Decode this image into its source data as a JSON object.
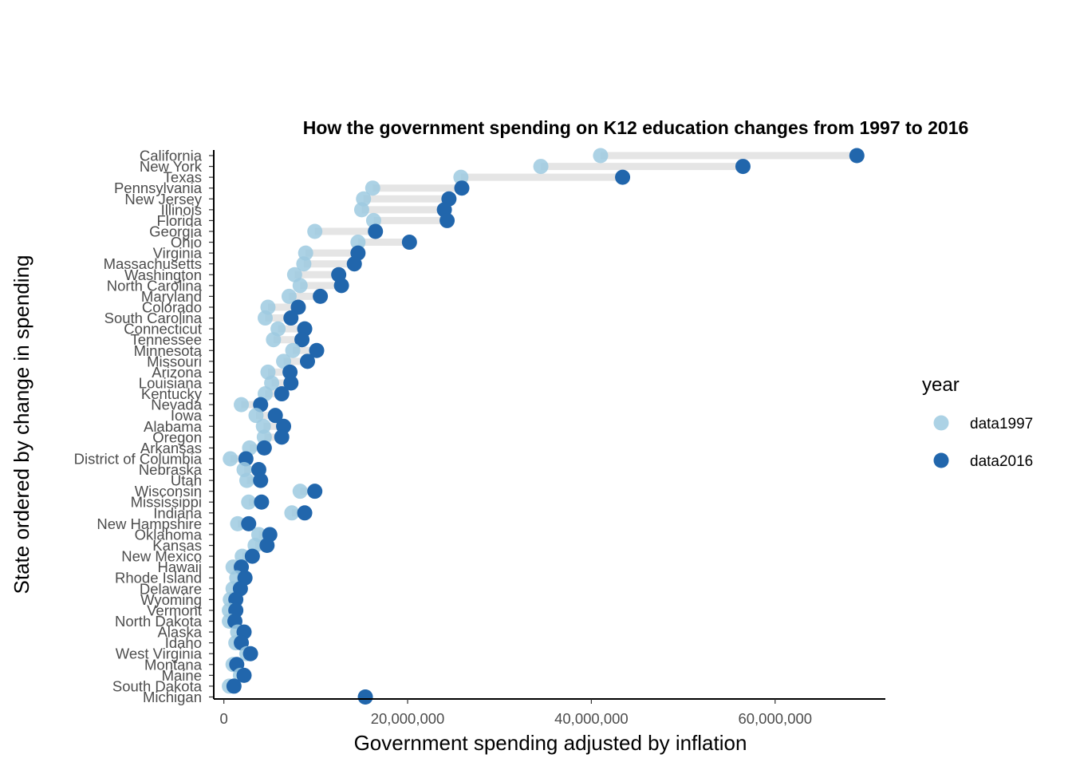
{
  "colors": {
    "data1997": "#9ecae1",
    "data2016": "#2166ac",
    "segment": "#e5e5e5",
    "axis": "#000000"
  },
  "chart_data": {
    "type": "dumbbell",
    "title": "How the government spending on K12 education changes from 1997 to 2016",
    "xlabel": "Government spending adjusted by inflation",
    "ylabel": "State ordered by change in spending",
    "xlim": [
      -1100000,
      72000000
    ],
    "x_ticks": [
      0,
      20000000,
      40000000,
      60000000
    ],
    "x_tick_labels": [
      "0",
      "20,000,000",
      "40,000,000",
      "60,000,000"
    ],
    "legend_title": "year",
    "legend_position": "right",
    "series": [
      {
        "name": "data1997",
        "key": "v1997"
      },
      {
        "name": "data2016",
        "key": "v2016"
      }
    ],
    "states": [
      {
        "name": "California",
        "v1997": 41000000,
        "v2016": 68900000
      },
      {
        "name": "New York",
        "v1997": 34500000,
        "v2016": 56500000
      },
      {
        "name": "Texas",
        "v1997": 25800000,
        "v2016": 43400000
      },
      {
        "name": "Pennsylvania",
        "v1997": 16200000,
        "v2016": 25900000
      },
      {
        "name": "New Jersey",
        "v1997": 15200000,
        "v2016": 24500000
      },
      {
        "name": "Illinois",
        "v1997": 15000000,
        "v2016": 24000000
      },
      {
        "name": "Florida",
        "v1997": 16300000,
        "v2016": 24300000
      },
      {
        "name": "Georgia",
        "v1997": 9900000,
        "v2016": 16500000
      },
      {
        "name": "Ohio",
        "v1997": 14600000,
        "v2016": 20200000
      },
      {
        "name": "Virginia",
        "v1997": 8900000,
        "v2016": 14600000
      },
      {
        "name": "Massachusetts",
        "v1997": 8700000,
        "v2016": 14200000
      },
      {
        "name": "Washington",
        "v1997": 7700000,
        "v2016": 12500000
      },
      {
        "name": "North Carolina",
        "v1997": 8300000,
        "v2016": 12800000
      },
      {
        "name": "Maryland",
        "v1997": 7100000,
        "v2016": 10500000
      },
      {
        "name": "Colorado",
        "v1997": 4800000,
        "v2016": 8100000
      },
      {
        "name": "South Carolina",
        "v1997": 4500000,
        "v2016": 7300000
      },
      {
        "name": "Connecticut",
        "v1997": 5900000,
        "v2016": 8800000
      },
      {
        "name": "Tennessee",
        "v1997": 5400000,
        "v2016": 8500000
      },
      {
        "name": "Minnesota",
        "v1997": 7500000,
        "v2016": 10100000
      },
      {
        "name": "Missouri",
        "v1997": 6500000,
        "v2016": 9100000
      },
      {
        "name": "Arizona",
        "v1997": 4800000,
        "v2016": 7200000
      },
      {
        "name": "Louisiana",
        "v1997": 5200000,
        "v2016": 7300000
      },
      {
        "name": "Kentucky",
        "v1997": 4500000,
        "v2016": 6300000
      },
      {
        "name": "Nevada",
        "v1997": 1900000,
        "v2016": 4000000
      },
      {
        "name": "Iowa",
        "v1997": 3500000,
        "v2016": 5600000
      },
      {
        "name": "Alabama",
        "v1997": 4300000,
        "v2016": 6500000
      },
      {
        "name": "Oregon",
        "v1997": 4400000,
        "v2016": 6300000
      },
      {
        "name": "Arkansas",
        "v1997": 2800000,
        "v2016": 4400000
      },
      {
        "name": "District of Columbia",
        "v1997": 700000,
        "v2016": 2400000
      },
      {
        "name": "Nebraska",
        "v1997": 2200000,
        "v2016": 3800000
      },
      {
        "name": "Utah",
        "v1997": 2500000,
        "v2016": 4000000
      },
      {
        "name": "Wisconsin",
        "v1997": 8300000,
        "v2016": 9900000
      },
      {
        "name": "Mississippi",
        "v1997": 2700000,
        "v2016": 4100000
      },
      {
        "name": "Indiana",
        "v1997": 7400000,
        "v2016": 8800000
      },
      {
        "name": "New Hampshire",
        "v1997": 1500000,
        "v2016": 2700000
      },
      {
        "name": "Oklahoma",
        "v1997": 3800000,
        "v2016": 5000000
      },
      {
        "name": "Kansas",
        "v1997": 3400000,
        "v2016": 4700000
      },
      {
        "name": "New Mexico",
        "v1997": 2000000,
        "v2016": 3100000
      },
      {
        "name": "Hawaii",
        "v1997": 1000000,
        "v2016": 1900000
      },
      {
        "name": "Rhode Island",
        "v1997": 1400000,
        "v2016": 2300000
      },
      {
        "name": "Delaware",
        "v1997": 1000000,
        "v2016": 1800000
      },
      {
        "name": "Wyoming",
        "v1997": 700000,
        "v2016": 1300000
      },
      {
        "name": "Vermont",
        "v1997": 600000,
        "v2016": 1300000
      },
      {
        "name": "North Dakota",
        "v1997": 600000,
        "v2016": 1200000
      },
      {
        "name": "Alaska",
        "v1997": 1500000,
        "v2016": 2200000
      },
      {
        "name": "Idaho",
        "v1997": 1300000,
        "v2016": 1900000
      },
      {
        "name": "West Virginia",
        "v1997": 2500000,
        "v2016": 2900000
      },
      {
        "name": "Montana",
        "v1997": 1000000,
        "v2016": 1400000
      },
      {
        "name": "Maine",
        "v1997": 1800000,
        "v2016": 2200000
      },
      {
        "name": "South Dakota",
        "v1997": 600000,
        "v2016": 1100000
      },
      {
        "name": "Michigan",
        "v1997": 15400000,
        "v2016": 15400000
      }
    ]
  }
}
